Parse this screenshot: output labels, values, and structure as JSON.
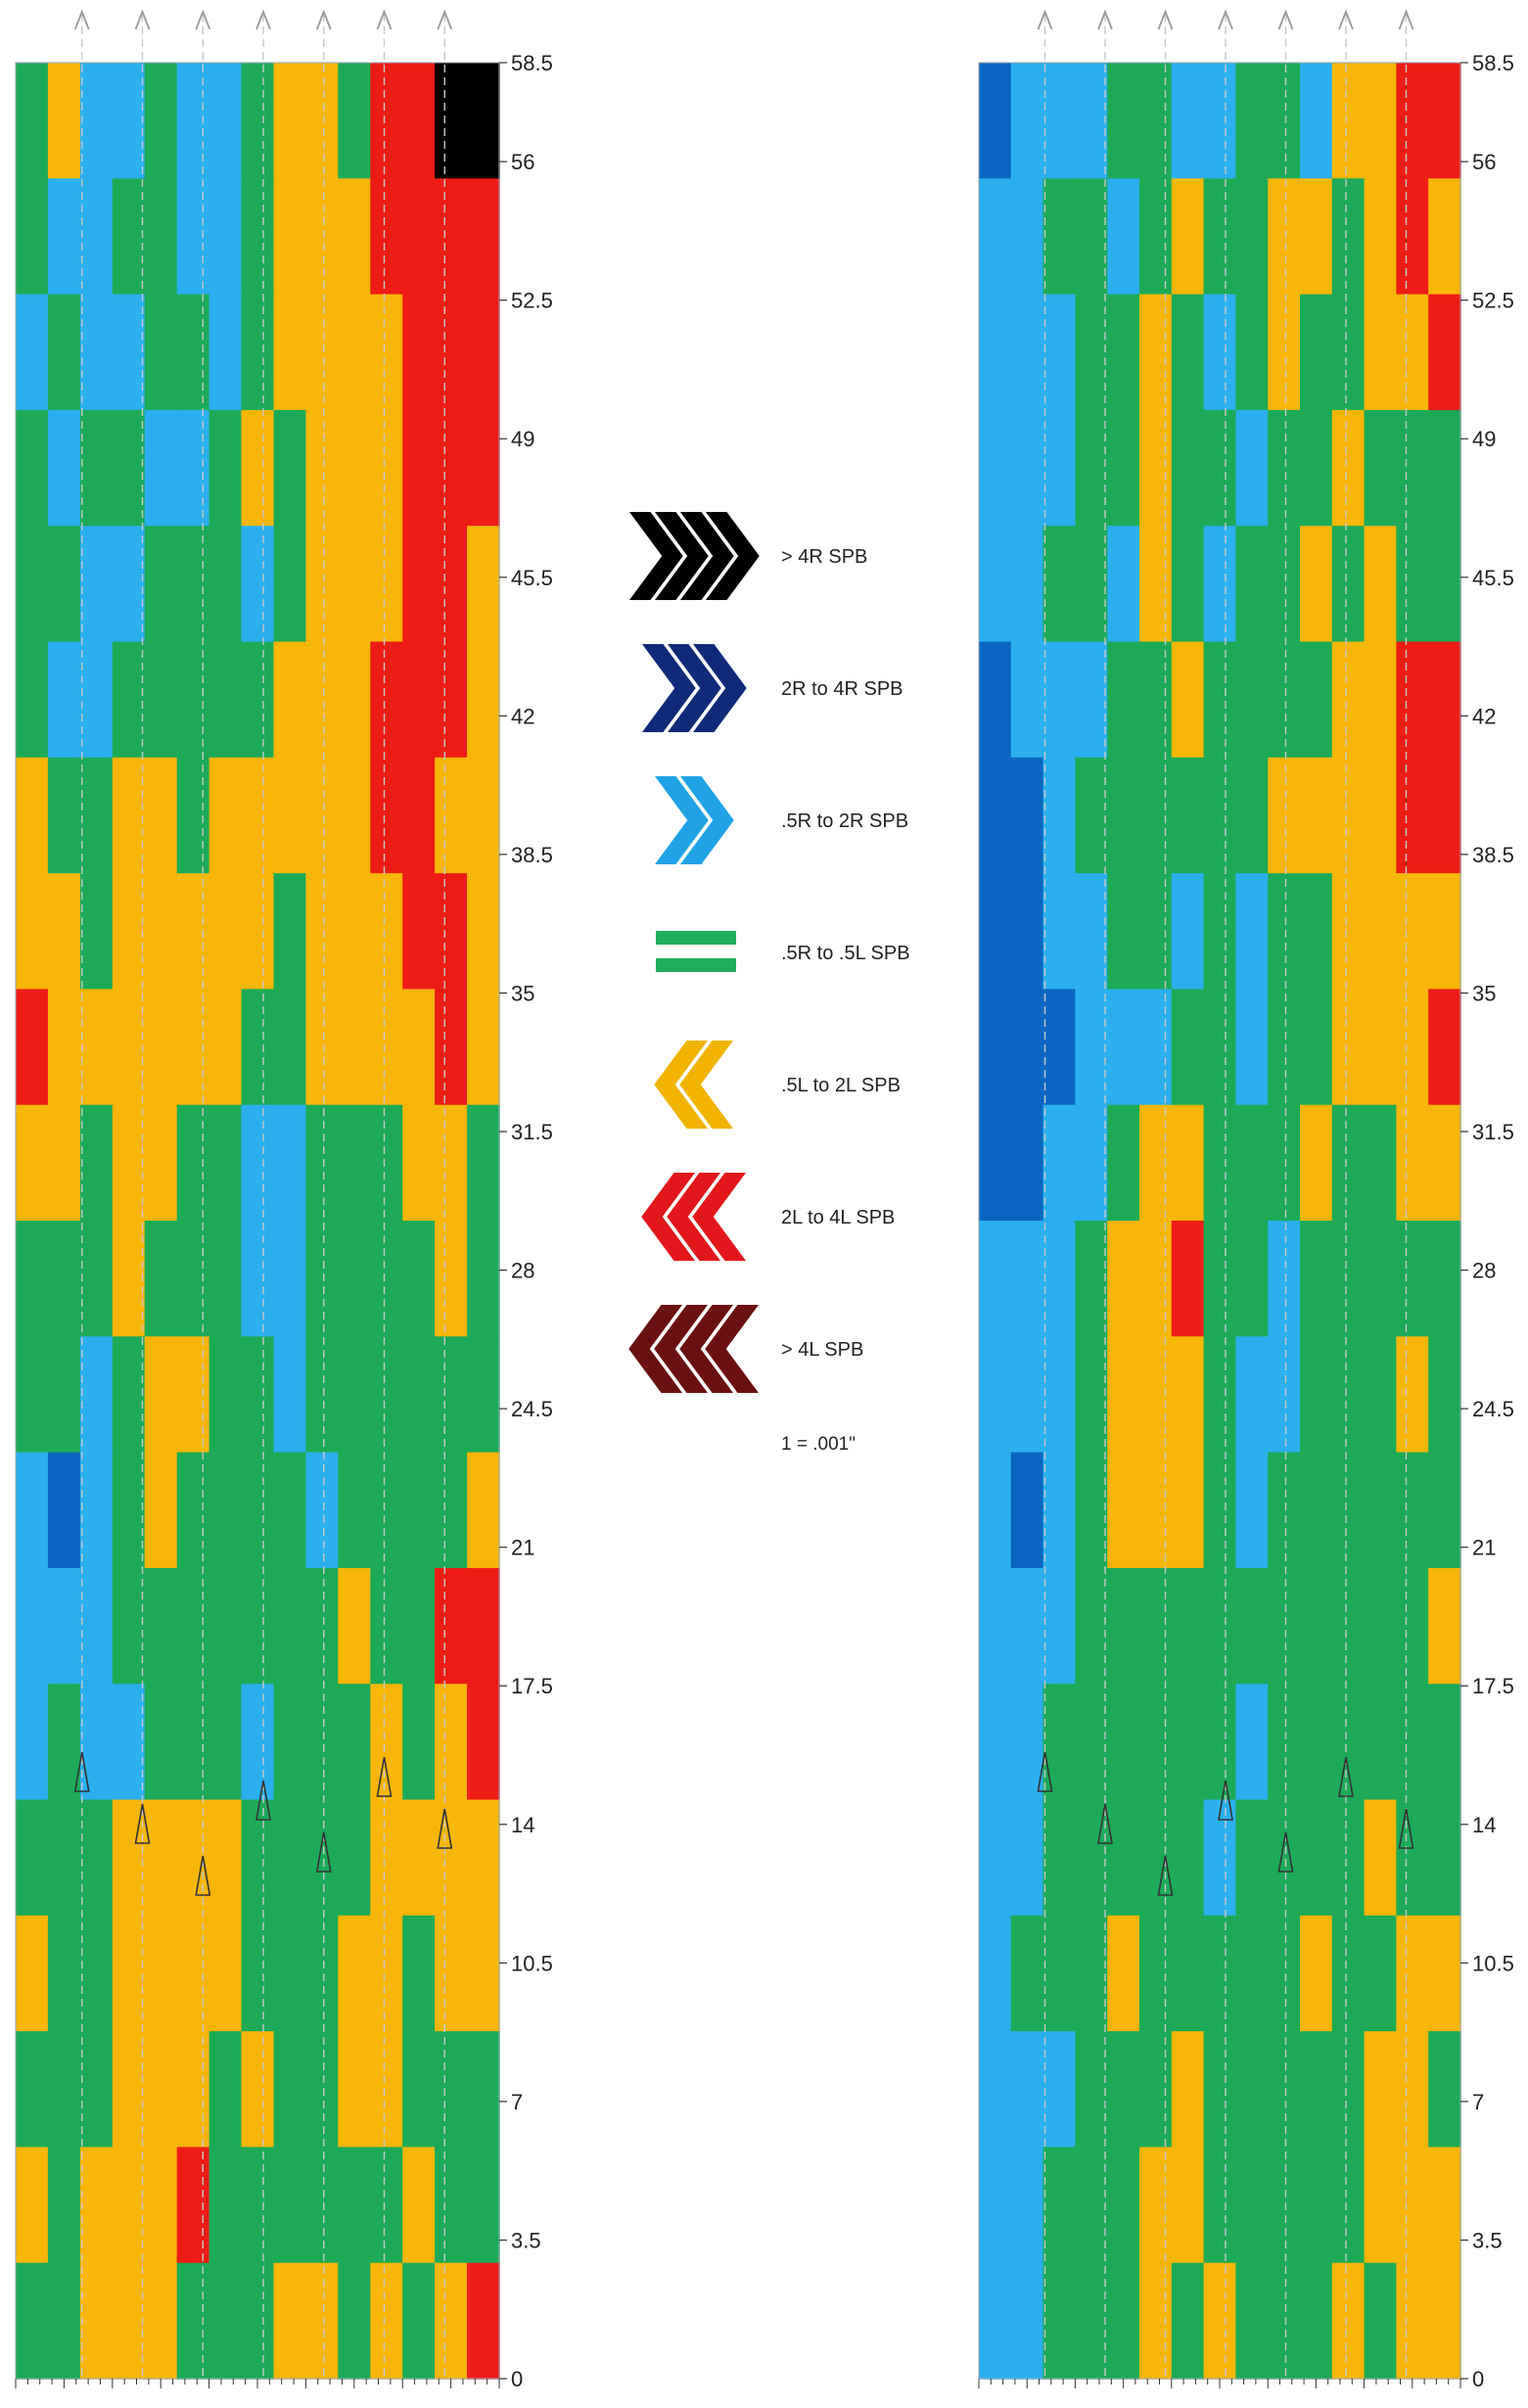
{
  "chart_data": [
    {
      "type": "heatmap",
      "panel": "left",
      "y_ticks": [
        "0",
        "3.5",
        "7",
        "10.5",
        "14",
        "17.5",
        "21",
        "24.5",
        "28",
        "31.5",
        "35",
        "38.5",
        "42",
        "45.5",
        "49",
        "52.5",
        "56",
        "58.5"
      ],
      "ylim": [
        0,
        58.5
      ],
      "columns": 15,
      "rows": 20,
      "cells": [
        [
          2,
          3,
          1,
          1,
          2,
          1,
          1,
          2,
          3,
          3,
          2,
          4,
          4,
          5,
          5
        ],
        [
          2,
          1,
          1,
          2,
          2,
          1,
          1,
          2,
          3,
          3,
          3,
          4,
          4,
          4,
          4
        ],
        [
          1,
          2,
          1,
          1,
          2,
          2,
          1,
          2,
          3,
          3,
          3,
          3,
          4,
          4,
          4
        ],
        [
          2,
          1,
          2,
          2,
          1,
          1,
          2,
          3,
          2,
          3,
          3,
          3,
          4,
          4,
          4
        ],
        [
          2,
          2,
          1,
          1,
          2,
          2,
          2,
          1,
          2,
          3,
          3,
          3,
          4,
          4,
          3
        ],
        [
          2,
          1,
          1,
          2,
          2,
          2,
          2,
          2,
          3,
          3,
          3,
          4,
          4,
          4,
          3
        ],
        [
          3,
          2,
          2,
          3,
          3,
          2,
          3,
          3,
          3,
          3,
          3,
          4,
          4,
          3,
          3
        ],
        [
          3,
          3,
          2,
          3,
          3,
          3,
          3,
          3,
          2,
          3,
          3,
          3,
          4,
          4,
          3
        ],
        [
          4,
          3,
          3,
          3,
          3,
          3,
          3,
          2,
          2,
          3,
          3,
          3,
          3,
          4,
          3
        ],
        [
          3,
          3,
          2,
          3,
          3,
          2,
          2,
          1,
          1,
          2,
          2,
          2,
          3,
          3,
          2
        ],
        [
          2,
          2,
          2,
          3,
          2,
          2,
          2,
          1,
          1,
          2,
          2,
          2,
          2,
          3,
          2
        ],
        [
          2,
          2,
          1,
          2,
          3,
          3,
          2,
          2,
          1,
          2,
          2,
          2,
          2,
          2,
          2
        ],
        [
          1,
          0,
          1,
          2,
          3,
          2,
          2,
          2,
          2,
          1,
          2,
          2,
          2,
          2,
          3
        ],
        [
          1,
          1,
          1,
          2,
          2,
          2,
          2,
          2,
          2,
          2,
          3,
          2,
          2,
          4,
          4
        ],
        [
          1,
          2,
          1,
          1,
          2,
          2,
          2,
          1,
          2,
          2,
          2,
          3,
          2,
          3,
          4
        ],
        [
          2,
          2,
          2,
          3,
          3,
          3,
          3,
          2,
          2,
          2,
          2,
          3,
          3,
          3,
          3
        ],
        [
          3,
          2,
          2,
          3,
          3,
          3,
          3,
          2,
          2,
          2,
          3,
          3,
          2,
          3,
          3
        ],
        [
          2,
          2,
          2,
          3,
          3,
          3,
          2,
          3,
          2,
          2,
          3,
          3,
          2,
          2,
          2
        ],
        [
          3,
          2,
          3,
          3,
          3,
          4,
          2,
          2,
          2,
          2,
          2,
          2,
          3,
          2,
          2
        ],
        [
          2,
          2,
          3,
          3,
          3,
          2,
          2,
          2,
          3,
          3,
          2,
          3,
          2,
          3,
          4
        ]
      ]
    },
    {
      "type": "heatmap",
      "panel": "right",
      "y_ticks": [
        "0",
        "3.5",
        "7",
        "10.5",
        "14",
        "17.5",
        "21",
        "24.5",
        "28",
        "31.5",
        "35",
        "38.5",
        "42",
        "45.5",
        "49",
        "52.5",
        "56",
        "58.5"
      ],
      "ylim": [
        0,
        58.5
      ],
      "columns": 15,
      "rows": 20,
      "cells": [
        [
          0,
          1,
          1,
          1,
          2,
          2,
          1,
          1,
          2,
          2,
          1,
          3,
          3,
          4,
          4
        ],
        [
          1,
          1,
          2,
          2,
          1,
          2,
          3,
          2,
          2,
          3,
          3,
          2,
          3,
          4,
          3
        ],
        [
          1,
          1,
          1,
          2,
          2,
          3,
          2,
          1,
          2,
          3,
          2,
          2,
          3,
          3,
          4
        ],
        [
          1,
          1,
          1,
          2,
          2,
          3,
          2,
          2,
          1,
          2,
          2,
          3,
          2,
          2,
          2
        ],
        [
          1,
          1,
          2,
          2,
          1,
          3,
          2,
          1,
          2,
          2,
          3,
          2,
          3,
          2,
          2
        ],
        [
          0,
          1,
          1,
          1,
          2,
          2,
          3,
          2,
          2,
          2,
          2,
          3,
          3,
          4,
          4
        ],
        [
          0,
          0,
          1,
          2,
          2,
          2,
          2,
          2,
          2,
          3,
          3,
          3,
          3,
          4,
          4
        ],
        [
          0,
          0,
          1,
          1,
          2,
          2,
          1,
          2,
          1,
          2,
          2,
          3,
          3,
          3,
          3
        ],
        [
          0,
          0,
          0,
          1,
          1,
          1,
          2,
          2,
          1,
          2,
          2,
          3,
          3,
          3,
          4
        ],
        [
          0,
          0,
          1,
          1,
          2,
          3,
          3,
          2,
          2,
          2,
          3,
          2,
          2,
          3,
          3
        ],
        [
          1,
          1,
          1,
          2,
          3,
          3,
          4,
          2,
          2,
          1,
          2,
          2,
          2,
          2,
          2
        ],
        [
          1,
          1,
          1,
          2,
          3,
          3,
          3,
          2,
          1,
          1,
          2,
          2,
          2,
          3,
          2
        ],
        [
          1,
          0,
          1,
          2,
          3,
          3,
          3,
          2,
          1,
          2,
          2,
          2,
          2,
          2,
          2
        ],
        [
          1,
          1,
          1,
          2,
          2,
          2,
          2,
          2,
          2,
          2,
          2,
          2,
          2,
          2,
          3
        ],
        [
          1,
          1,
          2,
          2,
          2,
          2,
          2,
          2,
          1,
          2,
          2,
          2,
          2,
          2,
          2
        ],
        [
          1,
          1,
          2,
          2,
          2,
          2,
          2,
          1,
          2,
          2,
          2,
          2,
          3,
          2,
          2
        ],
        [
          1,
          2,
          2,
          2,
          3,
          2,
          2,
          2,
          2,
          2,
          3,
          2,
          2,
          3,
          3
        ],
        [
          1,
          1,
          1,
          2,
          2,
          2,
          3,
          2,
          2,
          2,
          2,
          2,
          3,
          3,
          2
        ],
        [
          1,
          1,
          2,
          2,
          2,
          3,
          3,
          2,
          2,
          2,
          2,
          2,
          3,
          3,
          3
        ],
        [
          1,
          1,
          2,
          2,
          2,
          3,
          2,
          3,
          2,
          2,
          2,
          3,
          2,
          3,
          3
        ]
      ]
    }
  ],
  "legend": {
    "items": [
      {
        "label": "> 4R SPB",
        "color": "#000000",
        "chevrons": 4,
        "dir": "right",
        "icon": "chevron-right-icon"
      },
      {
        "label": "2R to 4R SPB",
        "color": "#0f2a78",
        "chevrons": 3,
        "dir": "right",
        "icon": "chevron-right-icon"
      },
      {
        "label": ".5R to 2R SPB",
        "color": "#1fa3e6",
        "chevrons": 2,
        "dir": "right",
        "icon": "chevron-right-icon"
      },
      {
        "label": ".5R to .5L SPB",
        "color": "#1fae5a",
        "chevrons": 0,
        "dir": "equal",
        "icon": "equals-icon"
      },
      {
        "label": ".5L to 2L SPB",
        "color": "#f2b400",
        "chevrons": 2,
        "dir": "left",
        "icon": "chevron-left-icon"
      },
      {
        "label": "2L to 4L SPB",
        "color": "#e3171b",
        "chevrons": 3,
        "dir": "left",
        "icon": "chevron-left-icon"
      },
      {
        "label": "> 4L SPB",
        "color": "#6b1010",
        "chevrons": 4,
        "dir": "left",
        "icon": "chevron-left-icon"
      }
    ],
    "footnote": "1 = .001\""
  },
  "palette": [
    "#0a66c2",
    "#2ab0ee",
    "#1caa57",
    "#f7b608",
    "#ee1c17"
  ]
}
